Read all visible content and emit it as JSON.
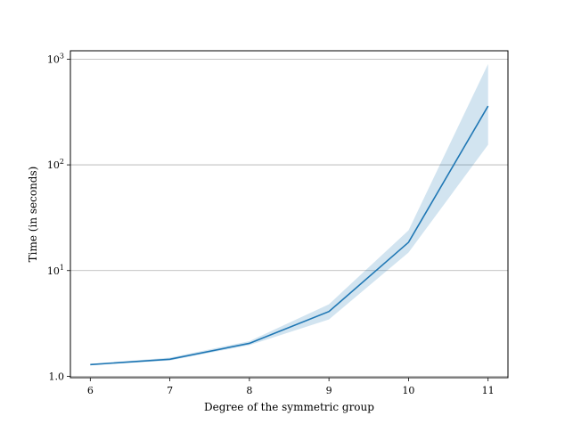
{
  "chart_data": {
    "type": "line",
    "title": "",
    "xlabel": "Degree of the symmetric group",
    "ylabel": "Time (in seconds)",
    "y_scale": "log",
    "grid": "horizontal at major y ticks",
    "x_ticks": [
      "6",
      "7",
      "8",
      "9",
      "10",
      "11"
    ],
    "y_ticks": [
      {
        "value": 1,
        "base": "1.0",
        "exp": ""
      },
      {
        "value": 10,
        "base": "10",
        "exp": "1"
      },
      {
        "value": 100,
        "base": "10",
        "exp": "2"
      },
      {
        "value": 1000,
        "base": "10",
        "exp": "3"
      }
    ],
    "xlim": [
      5.75,
      11.25
    ],
    "ylim": [
      0.97,
      1200
    ],
    "series": [
      {
        "x": [
          6,
          7,
          8,
          9,
          10,
          11
        ],
        "values": [
          1.29,
          1.45,
          2.05,
          4.1,
          18.5,
          360
        ],
        "lower": [
          1.27,
          1.41,
          1.97,
          3.45,
          14.8,
          155
        ],
        "upper": [
          1.31,
          1.5,
          2.15,
          4.8,
          24,
          900
        ],
        "color": "#1f77b4",
        "band_color": "#1f77b4"
      }
    ]
  }
}
